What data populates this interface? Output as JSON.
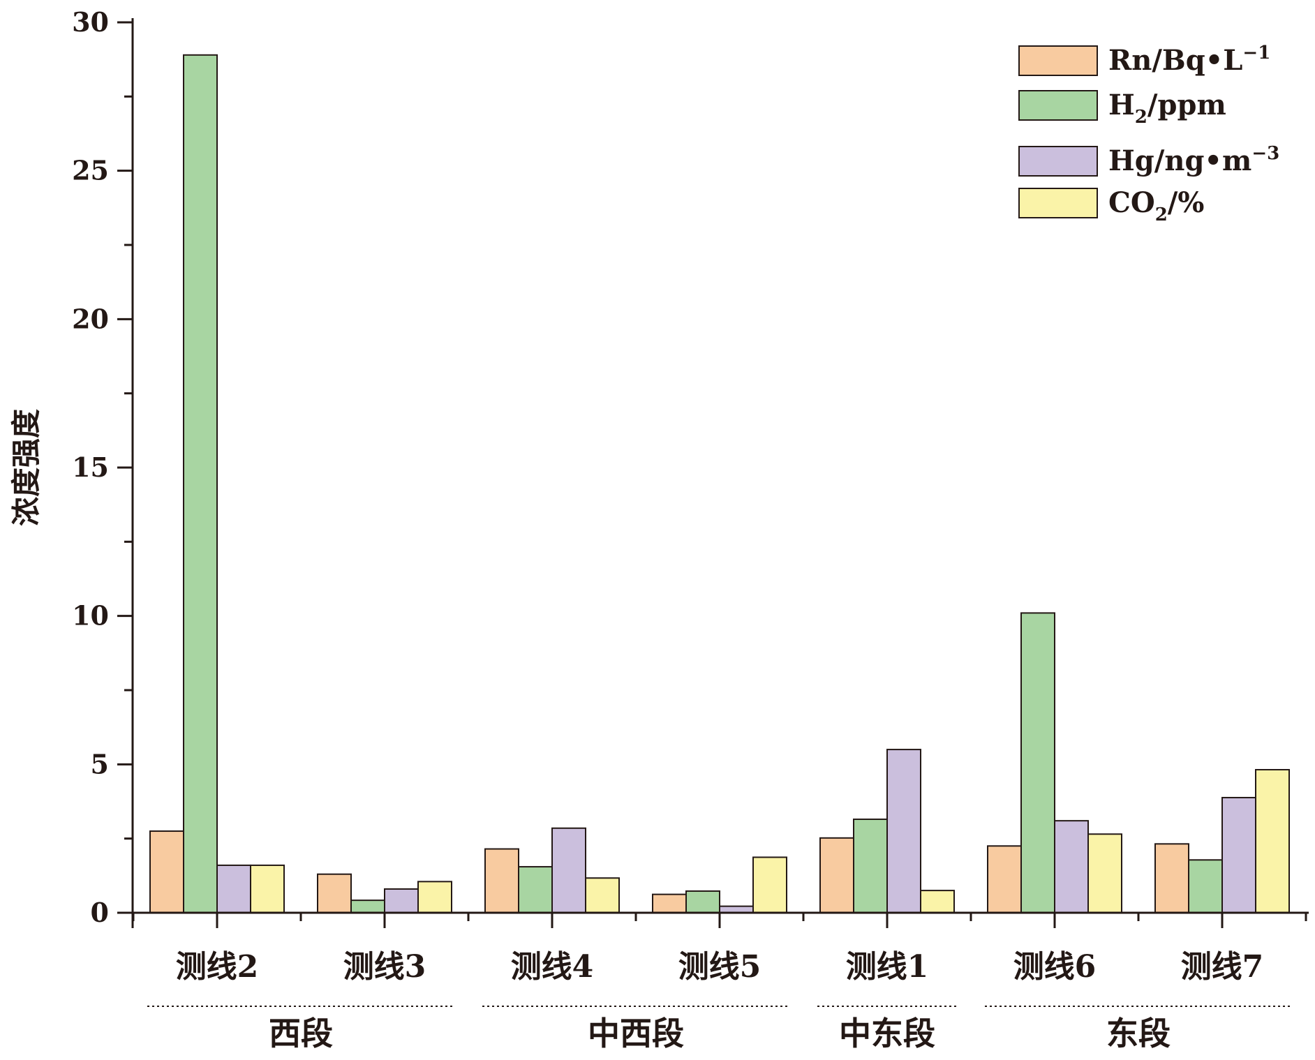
{
  "chart_data": {
    "type": "bar",
    "ylabel": "浓度强度",
    "ylim": [
      0,
      30
    ],
    "yticks": [
      0,
      5,
      10,
      15,
      20,
      25,
      30
    ],
    "ytick_labels": [
      "0",
      "5",
      "10",
      "15",
      "20",
      "25",
      "30"
    ],
    "categories": [
      "测线2",
      "测线3",
      "测线4",
      "测线5",
      "测线1",
      "测线6",
      "测线7"
    ],
    "groups": [
      {
        "label": "西段",
        "categories": [
          "测线2",
          "测线3"
        ]
      },
      {
        "label": "中西段",
        "categories": [
          "测线4",
          "测线5"
        ]
      },
      {
        "label": "中东段",
        "categories": [
          "测线1"
        ]
      },
      {
        "label": "东段",
        "categories": [
          "测线6",
          "测线7"
        ]
      }
    ],
    "series": [
      {
        "name": "Rn/Bq•L",
        "unit_sup": "−1",
        "color": "#F8CBA0",
        "values": [
          2.75,
          1.3,
          2.15,
          0.62,
          2.52,
          2.25,
          2.32
        ]
      },
      {
        "name": "H",
        "name_sub": "2",
        "name_after": "/ppm",
        "color": "#A8D5A2",
        "values": [
          28.9,
          0.42,
          1.55,
          0.73,
          3.15,
          10.1,
          1.78
        ]
      },
      {
        "name": "Hg/ng•m",
        "unit_sup": "−3",
        "color": "#CBBFDD",
        "values": [
          1.6,
          0.8,
          2.85,
          0.22,
          5.5,
          3.1,
          3.88
        ]
      },
      {
        "name": "CO",
        "name_sub": "2",
        "name_after": "/%",
        "color": "#FAF3A8",
        "values": [
          1.6,
          1.05,
          1.17,
          1.87,
          0.75,
          2.65,
          4.82
        ]
      }
    ],
    "legend_position": "top-right",
    "grid": false
  }
}
